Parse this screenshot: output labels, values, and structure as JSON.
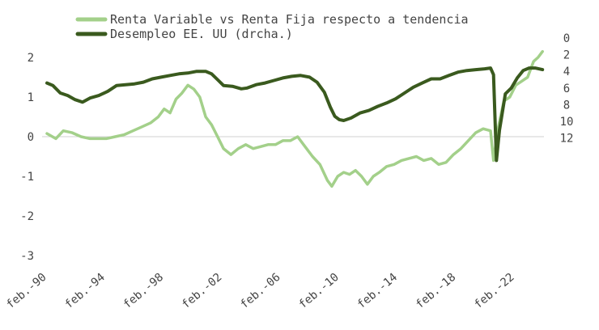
{
  "chart_data": {
    "type": "line",
    "legend_position": "top",
    "grid": false,
    "x_ticks": [
      "feb.-90",
      "feb.-94",
      "feb.-98",
      "feb.-02",
      "feb.-06",
      "feb.-10",
      "feb.-14",
      "feb.-18",
      "feb.-22"
    ],
    "x_range": [
      1990.1,
      2023.6
    ],
    "left_axis": {
      "ticks": [
        "2",
        "1",
        "0",
        "-1",
        "-2",
        "-3"
      ],
      "ylim": [
        -3,
        2.5
      ]
    },
    "right_axis": {
      "ticks": [
        "0",
        "2",
        "4",
        "6",
        "8",
        "10",
        "12"
      ],
      "ylim": [
        0,
        13
      ],
      "inverted": true
    },
    "series": [
      {
        "name": "Renta Variable vs Renta Fija respecto a tendencia",
        "color": "#a3d08a",
        "axis": "left",
        "x": [
          1990.1,
          1990.7,
          1991.2,
          1991.8,
          1992.4,
          1993.0,
          1993.6,
          1994.1,
          1994.7,
          1995.3,
          1995.9,
          1996.5,
          1997.1,
          1997.6,
          1998.0,
          1998.4,
          1998.8,
          1999.2,
          1999.6,
          2000.0,
          2000.4,
          2000.8,
          2001.2,
          2001.6,
          2002.0,
          2002.5,
          2003.0,
          2003.5,
          2004.0,
          2004.5,
          2005.0,
          2005.5,
          2006.0,
          2006.5,
          2007.0,
          2007.5,
          2008.0,
          2008.5,
          2009.0,
          2009.3,
          2009.7,
          2010.1,
          2010.5,
          2010.9,
          2011.3,
          2011.7,
          2012.1,
          2012.5,
          2013.0,
          2013.5,
          2014.0,
          2014.5,
          2015.0,
          2015.5,
          2016.0,
          2016.5,
          2017.0,
          2017.5,
          2018.0,
          2018.5,
          2019.0,
          2019.5,
          2020.0,
          2020.2,
          2020.5,
          2020.9,
          2021.3,
          2021.7,
          2022.1,
          2022.5,
          2022.9,
          2023.2,
          2023.5
        ],
        "y": [
          0.08,
          -0.05,
          0.15,
          0.1,
          0.0,
          -0.05,
          -0.05,
          -0.05,
          0.0,
          0.05,
          0.15,
          0.25,
          0.35,
          0.5,
          0.7,
          0.6,
          0.95,
          1.1,
          1.3,
          1.2,
          1.0,
          0.5,
          0.3,
          0.0,
          -0.3,
          -0.45,
          -0.3,
          -0.2,
          -0.3,
          -0.25,
          -0.2,
          -0.2,
          -0.1,
          -0.1,
          0.0,
          -0.25,
          -0.5,
          -0.7,
          -1.1,
          -1.25,
          -1.0,
          -0.9,
          -0.95,
          -0.85,
          -1.0,
          -1.2,
          -1.0,
          -0.9,
          -0.75,
          -0.7,
          -0.6,
          -0.55,
          -0.5,
          -0.6,
          -0.55,
          -0.7,
          -0.65,
          -0.45,
          -0.3,
          -0.1,
          0.1,
          0.2,
          0.15,
          -0.6,
          0.2,
          0.9,
          1.0,
          1.3,
          1.4,
          1.5,
          1.9,
          2.0,
          2.15
        ]
      },
      {
        "name": "Desempleo EE. UU (drcha.)",
        "color": "#3a5a1e",
        "axis": "right",
        "x": [
          1990.1,
          1990.5,
          1991.0,
          1991.5,
          1992.0,
          1992.5,
          1993.0,
          1993.6,
          1994.2,
          1994.8,
          1995.4,
          1996.0,
          1996.6,
          1997.2,
          1997.8,
          1998.4,
          1999.0,
          1999.6,
          2000.2,
          2000.8,
          2001.2,
          2001.6,
          2002.0,
          2002.6,
          2003.2,
          2003.6,
          2004.2,
          2004.8,
          2005.4,
          2006.0,
          2006.6,
          2007.2,
          2007.8,
          2008.3,
          2008.8,
          2009.2,
          2009.5,
          2009.8,
          2010.1,
          2010.6,
          2011.2,
          2011.8,
          2012.4,
          2013.0,
          2013.6,
          2014.2,
          2014.8,
          2015.4,
          2016.0,
          2016.6,
          2017.2,
          2017.8,
          2018.4,
          2019.0,
          2019.6,
          2020.0,
          2020.2,
          2020.4,
          2020.6,
          2021.0,
          2021.4,
          2021.8,
          2022.2,
          2022.6,
          2023.0,
          2023.5
        ],
        "y": [
          5.4,
          5.7,
          6.6,
          6.9,
          7.4,
          7.7,
          7.2,
          6.9,
          6.4,
          5.7,
          5.6,
          5.5,
          5.3,
          4.9,
          4.7,
          4.5,
          4.3,
          4.2,
          4.0,
          4.0,
          4.3,
          5.0,
          5.7,
          5.8,
          6.1,
          6.0,
          5.6,
          5.4,
          5.1,
          4.8,
          4.6,
          4.5,
          4.7,
          5.3,
          6.5,
          8.3,
          9.4,
          9.8,
          9.9,
          9.6,
          9.0,
          8.7,
          8.2,
          7.8,
          7.3,
          6.6,
          5.9,
          5.4,
          4.9,
          4.9,
          4.5,
          4.1,
          3.9,
          3.8,
          3.7,
          3.6,
          4.4,
          14.7,
          11.1,
          6.7,
          6.0,
          4.8,
          3.9,
          3.6,
          3.6,
          3.8
        ]
      }
    ]
  }
}
